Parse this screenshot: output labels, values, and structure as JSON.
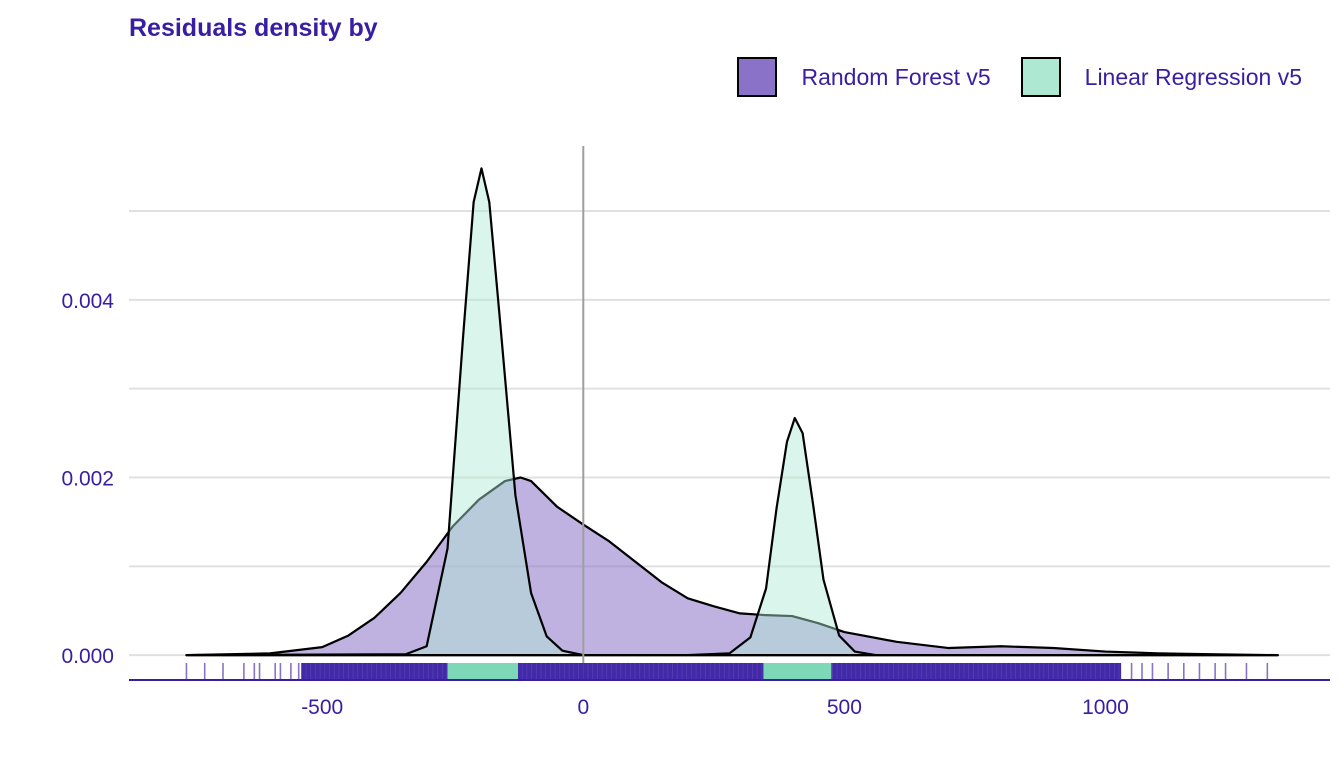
{
  "colors": {
    "text": "#371ea3",
    "rf_fill": "#8a72c8",
    "lr_fill": "#aee8d2",
    "rf_rug": "#371ea3",
    "lr_rug": "#7cd8b7",
    "grid": "#e0e0e0",
    "zero_line": "#9e9e9e",
    "axis": "#371ea3"
  },
  "chart_data": {
    "type": "area",
    "title": "Residuals density by",
    "xlabel": "",
    "ylabel": "",
    "xlim": [
      -870,
      1430
    ],
    "ylim": [
      -0.00028,
      0.0058
    ],
    "x_ticks": [
      -500,
      0,
      500,
      1000
    ],
    "x_tick_labels": [
      "-500",
      "0",
      "500",
      "1000"
    ],
    "y_ticks": [
      0.0,
      0.002,
      0.004
    ],
    "y_tick_labels": [
      "0.000",
      "0.002",
      "0.004"
    ],
    "y_minor_grid": [
      0.001,
      0.003,
      0.005
    ],
    "grid": true,
    "legend_position": "top-right",
    "vline_x": 0,
    "series": [
      {
        "name": "Random Forest v5",
        "fill": "#8a72c8",
        "x": [
          -760,
          -600,
          -500,
          -450,
          -400,
          -350,
          -300,
          -250,
          -200,
          -150,
          -120,
          -100,
          -50,
          0,
          50,
          100,
          150,
          200,
          250,
          300,
          350,
          400,
          450,
          500,
          600,
          700,
          800,
          900,
          1000,
          1100,
          1200,
          1330
        ],
        "y": [
          0.0,
          2e-05,
          9e-05,
          0.00022,
          0.00042,
          0.0007,
          0.00105,
          0.00145,
          0.00175,
          0.00196,
          0.002,
          0.00196,
          0.00167,
          0.00147,
          0.00128,
          0.00105,
          0.00082,
          0.00064,
          0.00055,
          0.00047,
          0.00045,
          0.00044,
          0.00036,
          0.00026,
          0.00015,
          8e-05,
          0.0001,
          8e-05,
          4e-05,
          2e-05,
          1e-05,
          0.0
        ]
      },
      {
        "name": "Linear Regression v5",
        "fill": "#aee8d2",
        "x": [
          -760,
          -340,
          -300,
          -260,
          -230,
          -210,
          -195,
          -180,
          -160,
          -130,
          -100,
          -70,
          -40,
          0,
          100,
          200,
          280,
          320,
          350,
          370,
          390,
          405,
          420,
          440,
          460,
          490,
          520,
          560,
          700,
          1330
        ],
        "y": [
          0.0,
          1e-05,
          0.0001,
          0.0012,
          0.0036,
          0.0051,
          0.00548,
          0.0051,
          0.0038,
          0.0018,
          0.0007,
          0.00021,
          5e-05,
          0.0,
          0.0,
          0.0,
          2e-05,
          0.0002,
          0.00075,
          0.00165,
          0.0024,
          0.00267,
          0.0025,
          0.0017,
          0.00085,
          0.00022,
          4e-05,
          0.0,
          0.0,
          0.0
        ]
      }
    ],
    "rug": {
      "rf_sparse": [
        -760,
        -725,
        -690,
        -650,
        -630,
        -620,
        -590,
        -580,
        -560,
        -545,
        1050,
        1070,
        1090,
        1120,
        1150,
        1180,
        1210,
        1230,
        1270,
        1310
      ],
      "rf_dense_range": [
        -540,
        1030
      ],
      "lr_ranges": [
        [
          -260,
          -125
        ],
        [
          345,
          475
        ]
      ]
    }
  }
}
